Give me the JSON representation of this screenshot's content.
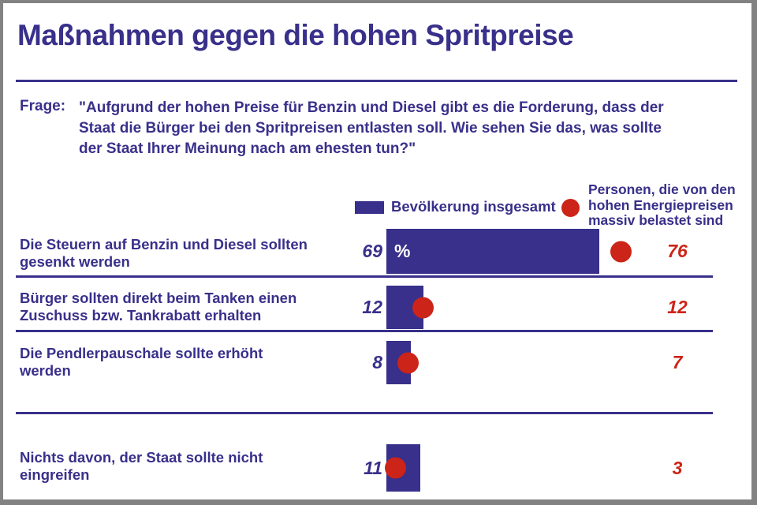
{
  "title": "Maßnahmen gegen die hohen Spritpreise",
  "question": {
    "label": "Frage:",
    "lines": [
      "\"Aufgrund der hohen Preise für Benzin und Diesel gibt es die Forderung, dass der",
      "Staat die Bürger bei den Spritpreisen entlasten soll. Wie sehen Sie das, was sollte",
      "der Staat Ihrer Meinung nach am ehesten tun?\""
    ]
  },
  "legend": {
    "population_label": "Bevölkerung insgesamt",
    "affected_label_lines": [
      "Personen, die von den",
      "hohen Energiepreisen",
      "massiv belastet sind"
    ]
  },
  "rows": [
    {
      "label_lines": [
        "Die Steuern auf Benzin und Diesel sollten",
        "gesenkt werden"
      ]
    },
    {
      "label_lines": [
        "Bürger sollten direkt beim Tanken einen",
        "Zuschuss bzw. Tankrabatt erhalten"
      ]
    },
    {
      "label_lines": [
        "Die Pendlerpauschale sollte erhöht",
        "werden"
      ]
    },
    {
      "label_lines": [
        "Nichts davon, der Staat sollte nicht",
        "eingreifen"
      ]
    }
  ],
  "colors": {
    "blue": "#38308a",
    "red": "#cc2418",
    "frame": "#828282",
    "background": "#ffffff"
  },
  "chart_data": {
    "type": "bar",
    "orientation": "horizontal",
    "title": "Maßnahmen gegen die hohen Spritpreise",
    "categories": [
      "Die Steuern auf Benzin und Diesel sollten gesenkt werden",
      "Bürger sollten direkt beim Tanken einen Zuschuss bzw. Tankrabatt erhalten",
      "Die Pendlerpauschale sollte erhöht werden",
      "Nichts davon, der Staat sollte nicht eingreifen"
    ],
    "series": [
      {
        "name": "Bevölkerung insgesamt",
        "marker": "bar",
        "color": "#38308a",
        "values": [
          69,
          12,
          8,
          11
        ]
      },
      {
        "name": "Personen, die von den hohen Energiepreisen massiv belastet sind",
        "marker": "dot",
        "color": "#cc2418",
        "values": [
          76,
          12,
          7,
          3
        ]
      }
    ],
    "value_suffix": "%",
    "xlim": [
      0,
      100
    ],
    "grid": false,
    "legend_position": "top"
  }
}
